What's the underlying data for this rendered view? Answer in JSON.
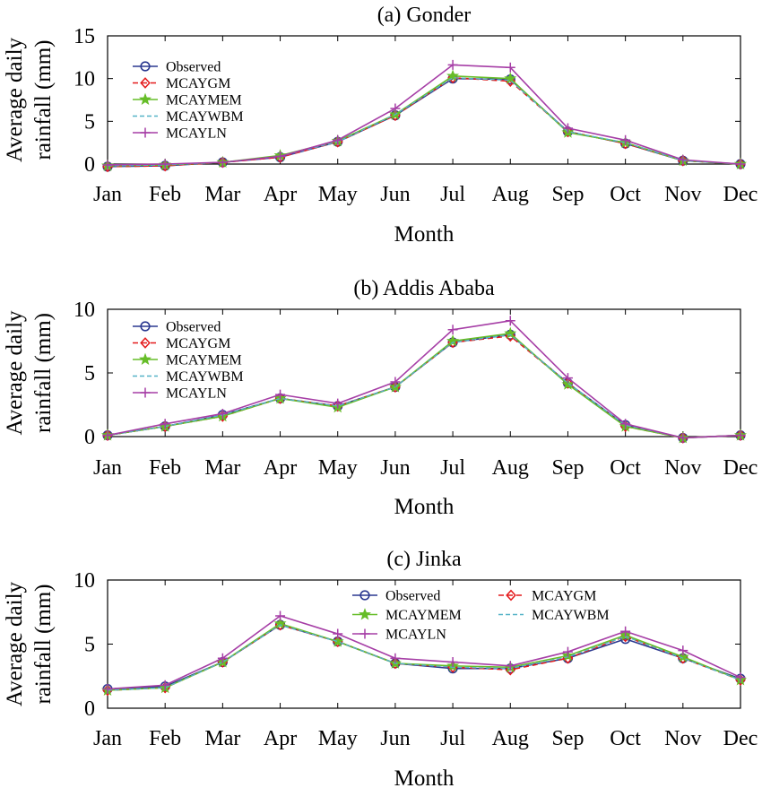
{
  "colors": {
    "Observed": "#2b3990",
    "MCAYGM": "#e41a1c",
    "MCAYMEM": "#66bd28",
    "MCAYWBM": "#55b3c7",
    "MCAYLN": "#a63ea6"
  },
  "chart_data": [
    {
      "type": "line",
      "title": "(a) Gonder",
      "xlabel": "Month",
      "ylabel": [
        "Average daily",
        "rainfall (mm)"
      ],
      "categories": [
        "Jan",
        "Feb",
        "Mar",
        "Apr",
        "May",
        "Jun",
        "Jul",
        "Aug",
        "Sep",
        "Oct",
        "Nov",
        "Dec"
      ],
      "ylim": [
        0,
        15
      ],
      "yticks": [
        0,
        5,
        10,
        15
      ],
      "legend_position": "upper-left",
      "legend_layout": "single-column",
      "series": [
        {
          "name": "Observed",
          "marker": "circle",
          "dash": "solid",
          "values": [
            -0.3,
            -0.2,
            0.2,
            0.8,
            2.6,
            5.7,
            10.0,
            9.9,
            3.8,
            2.4,
            0.4,
            0.0
          ]
        },
        {
          "name": "MCAYGM",
          "marker": "diamond",
          "dash": "dashed",
          "values": [
            -0.3,
            -0.2,
            0.2,
            0.8,
            2.6,
            5.7,
            10.1,
            9.7,
            3.8,
            2.4,
            0.4,
            0.0
          ]
        },
        {
          "name": "MCAYMEM",
          "marker": "star",
          "dash": "solid",
          "values": [
            -0.2,
            -0.1,
            0.2,
            1.0,
            2.7,
            5.8,
            10.3,
            10.0,
            3.7,
            2.5,
            0.4,
            0.0
          ]
        },
        {
          "name": "MCAYWBM",
          "marker": "none",
          "dash": "dashed",
          "values": [
            -0.2,
            -0.1,
            0.2,
            0.9,
            2.6,
            5.8,
            10.1,
            9.8,
            3.8,
            2.5,
            0.4,
            0.0
          ]
        },
        {
          "name": "MCAYLN",
          "marker": "plus",
          "dash": "solid",
          "values": [
            -0.1,
            0.0,
            0.2,
            0.9,
            2.8,
            6.5,
            11.6,
            11.3,
            4.2,
            2.8,
            0.5,
            0.0
          ]
        }
      ]
    },
    {
      "type": "line",
      "title": "(b) Addis Ababa",
      "xlabel": "Month",
      "ylabel": [
        "Average daily",
        "rainfall (mm)"
      ],
      "categories": [
        "Jan",
        "Feb",
        "Mar",
        "Apr",
        "May",
        "Jun",
        "Jul",
        "Aug",
        "Sep",
        "Oct",
        "Nov",
        "Dec"
      ],
      "ylim": [
        0,
        10
      ],
      "yticks": [
        0,
        5,
        10
      ],
      "legend_position": "upper-left",
      "legend_layout": "single-column",
      "series": [
        {
          "name": "Observed",
          "marker": "circle",
          "dash": "solid",
          "values": [
            0.1,
            0.8,
            1.7,
            3.0,
            2.4,
            3.9,
            7.4,
            8.0,
            4.2,
            0.9,
            -0.1,
            0.1
          ]
        },
        {
          "name": "MCAYGM",
          "marker": "diamond",
          "dash": "dashed",
          "values": [
            0.1,
            0.8,
            1.6,
            3.0,
            2.4,
            3.9,
            7.4,
            7.9,
            4.2,
            0.8,
            -0.1,
            0.1
          ]
        },
        {
          "name": "MCAYMEM",
          "marker": "star",
          "dash": "solid",
          "values": [
            0.1,
            0.8,
            1.6,
            3.0,
            2.3,
            3.9,
            7.5,
            8.1,
            4.1,
            0.8,
            -0.1,
            0.1
          ]
        },
        {
          "name": "MCAYWBM",
          "marker": "none",
          "dash": "dashed",
          "values": [
            0.1,
            0.8,
            1.7,
            3.0,
            2.4,
            3.9,
            7.4,
            8.0,
            4.2,
            0.9,
            -0.1,
            0.1
          ]
        },
        {
          "name": "MCAYLN",
          "marker": "plus",
          "dash": "solid",
          "values": [
            0.1,
            1.0,
            1.8,
            3.3,
            2.6,
            4.3,
            8.4,
            9.1,
            4.6,
            1.0,
            -0.1,
            0.1
          ]
        }
      ]
    },
    {
      "type": "line",
      "title": "(c) Jinka",
      "xlabel": "Month",
      "ylabel": [
        "Average daily",
        "rainfall (mm)"
      ],
      "categories": [
        "Jan",
        "Feb",
        "Mar",
        "Apr",
        "May",
        "Jun",
        "Jul",
        "Aug",
        "Sep",
        "Oct",
        "Nov",
        "Dec"
      ],
      "ylim": [
        0,
        10
      ],
      "yticks": [
        0,
        5,
        10
      ],
      "legend_position": "upper-right",
      "legend_layout": "two-column",
      "series": [
        {
          "name": "Observed",
          "marker": "circle",
          "dash": "solid",
          "values": [
            1.5,
            1.7,
            3.6,
            6.5,
            5.2,
            3.5,
            3.1,
            3.1,
            3.9,
            5.4,
            3.9,
            2.3
          ]
        },
        {
          "name": "MCAYGM",
          "marker": "diamond",
          "dash": "dashed",
          "values": [
            1.4,
            1.6,
            3.6,
            6.5,
            5.2,
            3.5,
            3.2,
            3.0,
            3.9,
            5.6,
            3.9,
            2.2
          ]
        },
        {
          "name": "MCAYMEM",
          "marker": "star",
          "dash": "solid",
          "values": [
            1.4,
            1.6,
            3.6,
            6.6,
            5.2,
            3.5,
            3.3,
            3.2,
            4.1,
            5.7,
            4.0,
            2.2
          ]
        },
        {
          "name": "MCAYWBM",
          "marker": "none",
          "dash": "dashed",
          "values": [
            1.4,
            1.6,
            3.6,
            6.5,
            5.2,
            3.5,
            3.2,
            3.1,
            4.0,
            5.6,
            3.9,
            2.2
          ]
        },
        {
          "name": "MCAYLN",
          "marker": "plus",
          "dash": "solid",
          "values": [
            1.5,
            1.8,
            3.9,
            7.2,
            5.8,
            3.9,
            3.6,
            3.3,
            4.4,
            6.0,
            4.5,
            2.4
          ]
        }
      ]
    }
  ]
}
